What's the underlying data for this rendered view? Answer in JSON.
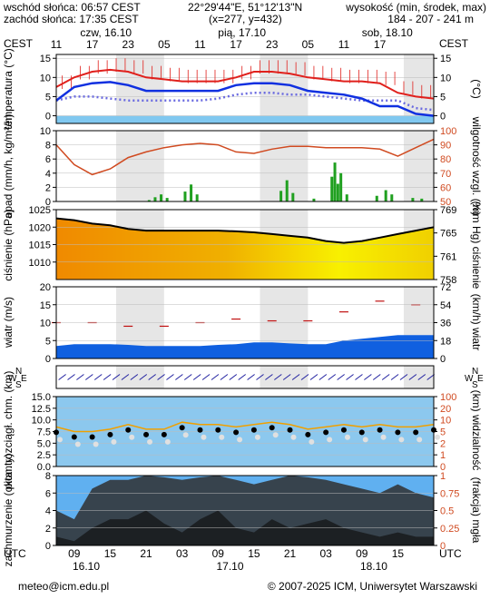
{
  "header": {
    "sunrise": "wschód słońca: 06:57 CEST",
    "sunset": "zachód słońca: 17:35 CEST",
    "coords": "22°29'44\"E, 51°12'13\"N",
    "grid": "(x=277, y=432)",
    "elev_label": "wysokość (min, środek, max)",
    "elev_values": "184 - 207 - 241 m"
  },
  "footer": {
    "email": "meteo@icm.edu.pl",
    "copyright": "© 2007-2025 ICM, Uniwersytet Warszawski"
  },
  "colors": {
    "temp_max": "#e0201c",
    "temp_min": "#1030e0",
    "dew": "#6a6ae0",
    "humidity": "#d04a20",
    "precip": "#20a020",
    "pressure_line": "#000000",
    "wind_gust": "#c01010",
    "wind_fill": "#1060e0",
    "cloud_fill": "#303030",
    "panel_bg": "#ffffff",
    "night_band": "#d8d8d8",
    "cold_bg": "#80c8f0"
  },
  "chart_data": [
    {
      "type": "line",
      "title": "temperatura",
      "ylabel": "temperatura (°C)",
      "y2label": "(°C)",
      "ylim": [
        -2,
        16
      ],
      "yticks": [
        0,
        5,
        10,
        15
      ],
      "top_time_label": "CEST",
      "top_days": [
        "czw, 16.10",
        "pią, 17.10",
        "sob, 18.10"
      ],
      "top_hours": [
        "11",
        "17",
        "23",
        "05",
        "11",
        "17",
        "23",
        "05",
        "11",
        "17"
      ],
      "x_hours": [
        0,
        3,
        6,
        9,
        12,
        15,
        18,
        21,
        24,
        27,
        30,
        33,
        36,
        39,
        42,
        45,
        48,
        51,
        54,
        57,
        60,
        63
      ],
      "series": [
        {
          "key": "max",
          "values": [
            7.5,
            10,
            11.5,
            12,
            11.5,
            10,
            9.5,
            9,
            9,
            9,
            10,
            11.5,
            11.5,
            11,
            10,
            9.5,
            9,
            9,
            8.5,
            6,
            5,
            4.5
          ]
        },
        {
          "key": "min",
          "values": [
            4,
            7.5,
            8.5,
            8.8,
            8,
            6.5,
            6.5,
            6.5,
            6.5,
            6.5,
            8,
            8.5,
            8.5,
            8,
            6.5,
            6,
            5.5,
            4.5,
            2.5,
            2.5,
            0.5,
            0
          ]
        },
        {
          "key": "dew",
          "values": [
            4,
            5,
            5,
            4.5,
            4,
            4,
            4,
            4,
            4,
            4.5,
            5.5,
            6,
            6,
            5.5,
            5.5,
            5,
            4.5,
            4,
            4,
            4,
            2,
            1.5
          ]
        }
      ]
    },
    {
      "type": "bar",
      "title": "opad",
      "ylabel": "opad (mm/h, kg/m²/h)",
      "y2label": "wilgotność wzgl. (%)",
      "ylim": [
        0,
        10
      ],
      "yticks": [
        0,
        2,
        4,
        6,
        8,
        10
      ],
      "y2lim": [
        50,
        100
      ],
      "y2ticks": [
        50,
        60,
        70,
        80,
        90,
        100
      ],
      "precip": [
        {
          "h": 15.5,
          "v": 0.2
        },
        {
          "h": 16.5,
          "v": 0.6
        },
        {
          "h": 17.5,
          "v": 1.0
        },
        {
          "h": 18.5,
          "v": 0.5
        },
        {
          "h": 21.5,
          "v": 1.4
        },
        {
          "h": 22.5,
          "v": 2.4
        },
        {
          "h": 23.5,
          "v": 1.0
        },
        {
          "h": 37.5,
          "v": 1.5
        },
        {
          "h": 38.5,
          "v": 3.0
        },
        {
          "h": 39.5,
          "v": 1.2
        },
        {
          "h": 43,
          "v": 0.4
        },
        {
          "h": 46,
          "v": 3.5
        },
        {
          "h": 46.5,
          "v": 5.5
        },
        {
          "h": 47,
          "v": 2.5
        },
        {
          "h": 47.5,
          "v": 4.0
        },
        {
          "h": 48.5,
          "v": 1.0
        },
        {
          "h": 53.5,
          "v": 0.8
        },
        {
          "h": 55,
          "v": 1.6
        },
        {
          "h": 56,
          "v": 1.0
        },
        {
          "h": 59.5,
          "v": 0.5
        },
        {
          "h": 61,
          "v": 0.4
        }
      ],
      "humidity": {
        "x": [
          0,
          3,
          6,
          9,
          12,
          15,
          18,
          21,
          24,
          27,
          30,
          33,
          36,
          39,
          42,
          45,
          48,
          51,
          54,
          57,
          60,
          63
        ],
        "values": [
          90,
          76,
          69,
          73,
          81,
          85,
          88,
          90,
          91,
          90,
          85,
          84,
          87,
          89,
          89,
          88,
          88,
          88,
          87,
          82,
          88,
          94
        ]
      }
    },
    {
      "type": "area",
      "title": "ciśnienie",
      "ylabel": "ciśnienie (hPa)",
      "y2label": "(mm Hg) ciśnienie",
      "ylim": [
        1005,
        1025
      ],
      "yticks": [
        1010,
        1015,
        1020,
        1025
      ],
      "y2ticks": [
        "758",
        "761",
        "765",
        "769"
      ],
      "x": [
        0,
        3,
        6,
        9,
        12,
        15,
        18,
        21,
        24,
        27,
        30,
        33,
        36,
        39,
        42,
        45,
        48,
        51,
        54,
        57,
        60,
        63
      ],
      "values": [
        1022.5,
        1022,
        1021,
        1020.5,
        1019.5,
        1019,
        1019,
        1019,
        1019,
        1019,
        1018.8,
        1018.5,
        1018,
        1017.5,
        1017,
        1016,
        1015.5,
        1016,
        1017,
        1018,
        1019,
        1020
      ]
    },
    {
      "type": "area",
      "title": "wiatr",
      "ylabel": "wiatr (m/s)",
      "y2label": "(km/h) wiatr",
      "ylim": [
        0,
        20
      ],
      "yticks": [
        0,
        5,
        10,
        15,
        20
      ],
      "y2ticks": [
        "0",
        "18",
        "36",
        "54",
        "72"
      ],
      "x": [
        0,
        3,
        6,
        9,
        12,
        15,
        18,
        21,
        24,
        27,
        30,
        33,
        36,
        39,
        42,
        45,
        48,
        51,
        54,
        57,
        60,
        63
      ],
      "speed": [
        3.5,
        4,
        4,
        4,
        3.8,
        3.5,
        3.5,
        3.5,
        3.5,
        3.8,
        4,
        4.5,
        4.5,
        4.2,
        4,
        4,
        5,
        5.5,
        6,
        6.5,
        6.5,
        6.5
      ],
      "gust": [
        10,
        11,
        10,
        9.5,
        9,
        9,
        9,
        9.5,
        10,
        10.5,
        11,
        11,
        10.5,
        10,
        10.5,
        12,
        13,
        15,
        16,
        16,
        15,
        14
      ]
    },
    {
      "type": "scatter",
      "title": "kierunek wiatru",
      "labels": [
        "W",
        "N",
        "S",
        "E"
      ]
    },
    {
      "type": "scatter",
      "title": "pion. rozciągł. chm.",
      "ylabel": "pion. rozciągł. chm. (km)",
      "y2label": "(km) widzialność",
      "ylim": [
        0,
        15
      ],
      "yticks": [
        0,
        2.5,
        5,
        7.5,
        10,
        12.5,
        15
      ],
      "yticklabels": [
        "0.0",
        "2.5",
        "5.0",
        "7.5",
        "10.0",
        "12.5",
        "15.0"
      ],
      "y2ticks": [
        "0",
        "1",
        "2",
        "5",
        "10",
        "20",
        "100"
      ],
      "visibility": {
        "x": [
          0,
          3,
          6,
          9,
          12,
          15,
          18,
          21,
          24,
          27,
          30,
          33,
          36,
          39,
          42,
          45,
          48,
          51,
          54,
          57,
          60,
          63
        ],
        "values": [
          8.5,
          7.5,
          7.5,
          8,
          9,
          8,
          8,
          9.5,
          9,
          9,
          8.5,
          9,
          9.5,
          9,
          8,
          8.5,
          9,
          8.5,
          9,
          8.5,
          8.5,
          9
        ]
      }
    },
    {
      "type": "area",
      "title": "zachmurzenie",
      "ylabel": "zachmurzenie (oktanty)",
      "y2label": "(frakcja) mgła",
      "ylim": [
        0,
        8
      ],
      "yticks": [
        0,
        2,
        4,
        6,
        8
      ],
      "y2ticks": [
        "0",
        "0.25",
        "0.5",
        "0.75",
        "1"
      ],
      "bottom_time_label": "UTC",
      "bottom_hours": [
        "09",
        "15",
        "21",
        "03",
        "09",
        "15",
        "21",
        "03",
        "09",
        "15"
      ],
      "bottom_days": [
        "16.10",
        "17.10",
        "18.10"
      ],
      "x": [
        0,
        3,
        6,
        9,
        12,
        15,
        18,
        21,
        24,
        27,
        30,
        33,
        36,
        39,
        42,
        45,
        48,
        51,
        54,
        57,
        60,
        63
      ],
      "total": [
        4,
        3,
        6.5,
        7.5,
        7.5,
        8,
        7.8,
        7.5,
        7.8,
        8,
        7.5,
        7,
        7.5,
        8,
        7.8,
        7.5,
        7,
        6.5,
        6,
        7,
        6,
        5.5
      ],
      "low": [
        1,
        0.5,
        2,
        3,
        3,
        4,
        2.5,
        1.5,
        3,
        4,
        2,
        1.5,
        3,
        2,
        2.5,
        3,
        2,
        1.5,
        1,
        1.5,
        1,
        1
      ]
    }
  ]
}
